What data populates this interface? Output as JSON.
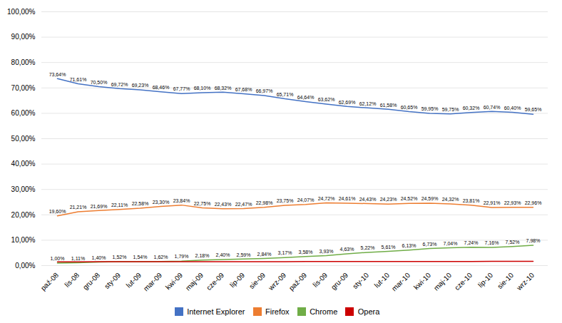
{
  "chart_data": {
    "type": "line",
    "categories": [
      "paź-08",
      "lis-08",
      "gru-08",
      "sty-09",
      "lut-09",
      "mar-09",
      "kwi-09",
      "maj-09",
      "cze-09",
      "lip-09",
      "sie-09",
      "wrz-09",
      "paź-09",
      "lis-09",
      "gru-09",
      "sty-10",
      "lut-10",
      "mar-10",
      "kwi-10",
      "maj-10",
      "cze-10",
      "lip-10",
      "sie-10",
      "wrz-10"
    ],
    "series": [
      {
        "name": "Internet Explorer",
        "color": "#4472C4",
        "values": [
          73.64,
          71.61,
          70.5,
          69.72,
          69.23,
          68.46,
          67.77,
          68.1,
          68.32,
          67.68,
          66.97,
          65.71,
          64.64,
          63.62,
          62.69,
          62.12,
          61.58,
          60.65,
          59.95,
          59.75,
          60.32,
          60.74,
          60.4,
          59.65
        ],
        "value_labels": [
          "73,64%",
          "71,61%",
          "70,50%",
          "69,72%",
          "69,23%",
          "68,46%",
          "67,77%",
          "68,10%",
          "68,32%",
          "67,68%",
          "66,97%",
          "65,71%",
          "64,64%",
          "63,62%",
          "62,69%",
          "62,12%",
          "61,58%",
          "60,65%",
          "59,95%",
          "59,75%",
          "60,32%",
          "60,74%",
          "60,40%",
          "59,65%"
        ]
      },
      {
        "name": "Firefox",
        "color": "#ED7D31",
        "values": [
          19.6,
          21.21,
          21.69,
          22.11,
          22.58,
          23.3,
          23.84,
          22.75,
          22.43,
          22.47,
          22.98,
          23.75,
          24.07,
          24.72,
          24.61,
          24.43,
          24.23,
          24.52,
          24.59,
          24.32,
          23.81,
          22.91,
          22.93,
          22.96
        ],
        "value_labels": [
          "19,60%",
          "21,21%",
          "21,69%",
          "22,11%",
          "22,58%",
          "23,30%",
          "23,84%",
          "22,75%",
          "22,43%",
          "22,47%",
          "22,98%",
          "23,75%",
          "24,07%",
          "24,72%",
          "24,61%",
          "24,43%",
          "24,23%",
          "24,52%",
          "24,59%",
          "24,32%",
          "23,81%",
          "22,91%",
          "22,93%",
          "22,96%"
        ]
      },
      {
        "name": "Chrome",
        "color": "#70AD47",
        "values": [
          1.0,
          1.11,
          1.4,
          1.52,
          1.54,
          1.62,
          1.79,
          2.18,
          2.4,
          2.59,
          2.84,
          3.17,
          3.58,
          3.93,
          4.63,
          5.22,
          5.61,
          6.13,
          6.73,
          7.04,
          7.24,
          7.16,
          7.52,
          7.98
        ],
        "value_labels": [
          "1,00%",
          "1,11%",
          "1,40%",
          "1,52%",
          "1,54%",
          "1,62%",
          "1,79%",
          "2,18%",
          "2,40%",
          "2,59%",
          "2,84%",
          "3,17%",
          "3,58%",
          "3,93%",
          "4,63%",
          "5,22%",
          "5,61%",
          "6,13%",
          "6,73%",
          "7,04%",
          "7,24%",
          "7,16%",
          "7,52%",
          "7,98%"
        ]
      },
      {
        "name": "Opera",
        "color": "#CC0000",
        "values": [
          1.48,
          1.5,
          1.51,
          1.52,
          1.53,
          1.54,
          1.55,
          1.56,
          1.57,
          1.57,
          1.58,
          1.58,
          1.59,
          1.59,
          1.6,
          1.6,
          1.61,
          1.62,
          1.63,
          1.64,
          1.65,
          1.66,
          1.67,
          1.68
        ]
      }
    ],
    "ylim": [
      0,
      100
    ],
    "yticks": [
      {
        "value": 0,
        "label": "0,00%"
      },
      {
        "value": 10,
        "label": "10,00%"
      },
      {
        "value": 20,
        "label": "20,00%"
      },
      {
        "value": 30,
        "label": "30,00%"
      },
      {
        "value": 40,
        "label": "40,00%"
      },
      {
        "value": 50,
        "label": "50,00%"
      },
      {
        "value": 60,
        "label": "60,00%"
      },
      {
        "value": 70,
        "label": "70,00%"
      },
      {
        "value": 80,
        "label": "80,00%"
      },
      {
        "value": 90,
        "label": "90,00%"
      },
      {
        "value": 100,
        "label": "100,00%"
      }
    ],
    "grid": true,
    "legend": "bottom",
    "data_labels": true
  }
}
